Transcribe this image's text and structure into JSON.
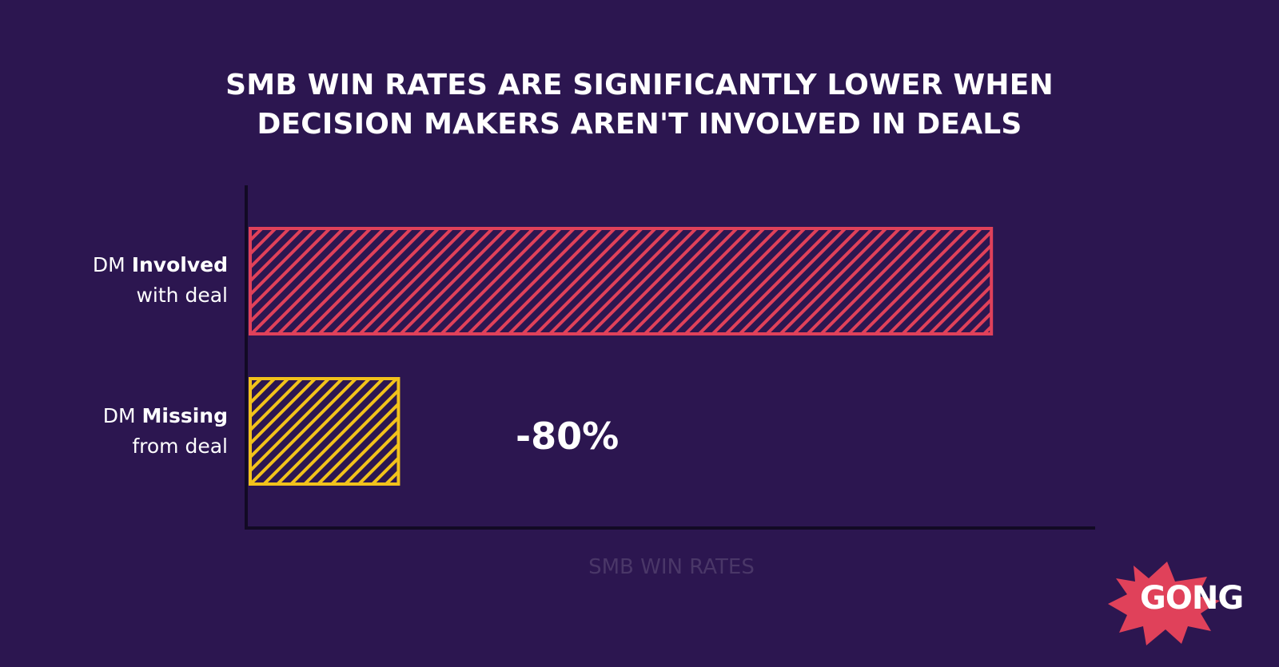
{
  "chart_data": {
    "type": "bar",
    "orientation": "horizontal",
    "title": "SMB WIN RATES ARE SIGNIFICANTLY LOWER WHEN DECISION MAKERS AREN'T INVOLVED IN DEALS",
    "title_lines": [
      "SMB WIN RATES ARE SIGNIFICANTLY LOWER WHEN",
      "DECISION MAKERS AREN'T INVOLVED IN DEALS"
    ],
    "xlabel": "SMB WIN RATES",
    "ylabel": "",
    "categories": [
      {
        "prefix": "DM ",
        "emphasis": "Involved",
        "line2": "with deal"
      },
      {
        "prefix": "DM ",
        "emphasis": "Missing",
        "line2": "from deal"
      }
    ],
    "values": [
      100,
      20
    ],
    "xlim": [
      0,
      114
    ],
    "value_scale": "relative win rate (DM Involved = 100)",
    "bar_colors": [
      "#e0415a",
      "#f2c21b"
    ],
    "fill_pattern": "diagonal-hatch",
    "annotations": [
      {
        "bar_index": 1,
        "text": "-80%"
      }
    ],
    "grid": false,
    "legend": "none"
  },
  "logo": {
    "text": "GONG",
    "color": "#e0415a"
  },
  "colors": {
    "background": "#2c1650",
    "axis": "#120a24",
    "text": "#ffffff",
    "xlabel": "#4a3768"
  }
}
